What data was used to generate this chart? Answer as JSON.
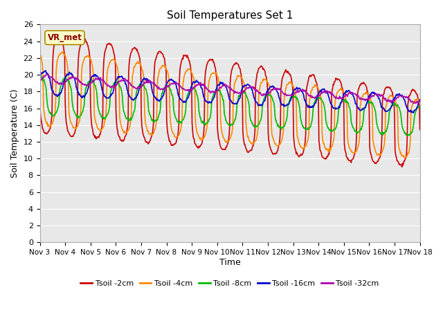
{
  "title": "Soil Temperatures Set 1",
  "xlabel": "Time",
  "ylabel": "Soil Temperature (C)",
  "ylim": [
    0,
    26
  ],
  "yticks": [
    0,
    2,
    4,
    6,
    8,
    10,
    12,
    14,
    16,
    18,
    20,
    22,
    24,
    26
  ],
  "xtick_labels": [
    "Nov 3",
    "Nov 4",
    "Nov 5",
    "Nov 6",
    "Nov 7",
    "Nov 8",
    "Nov 9",
    "Nov 10",
    "Nov 11",
    "Nov 12",
    "Nov 13",
    "Nov 14",
    "Nov 15",
    "Nov 16",
    "Nov 17",
    "Nov 18"
  ],
  "series_colors": [
    "#cc0000",
    "#ff8800",
    "#00bb00",
    "#0000cc",
    "#aa00aa"
  ],
  "series_labels": [
    "Tsoil -2cm",
    "Tsoil -4cm",
    "Tsoil -8cm",
    "Tsoil -16cm",
    "Tsoil -32cm"
  ],
  "annotation_text": "VR_met",
  "plot_bg_color": "#e8e8e8",
  "linewidth": 1.2,
  "n_days": 15,
  "samples_per_day": 48
}
